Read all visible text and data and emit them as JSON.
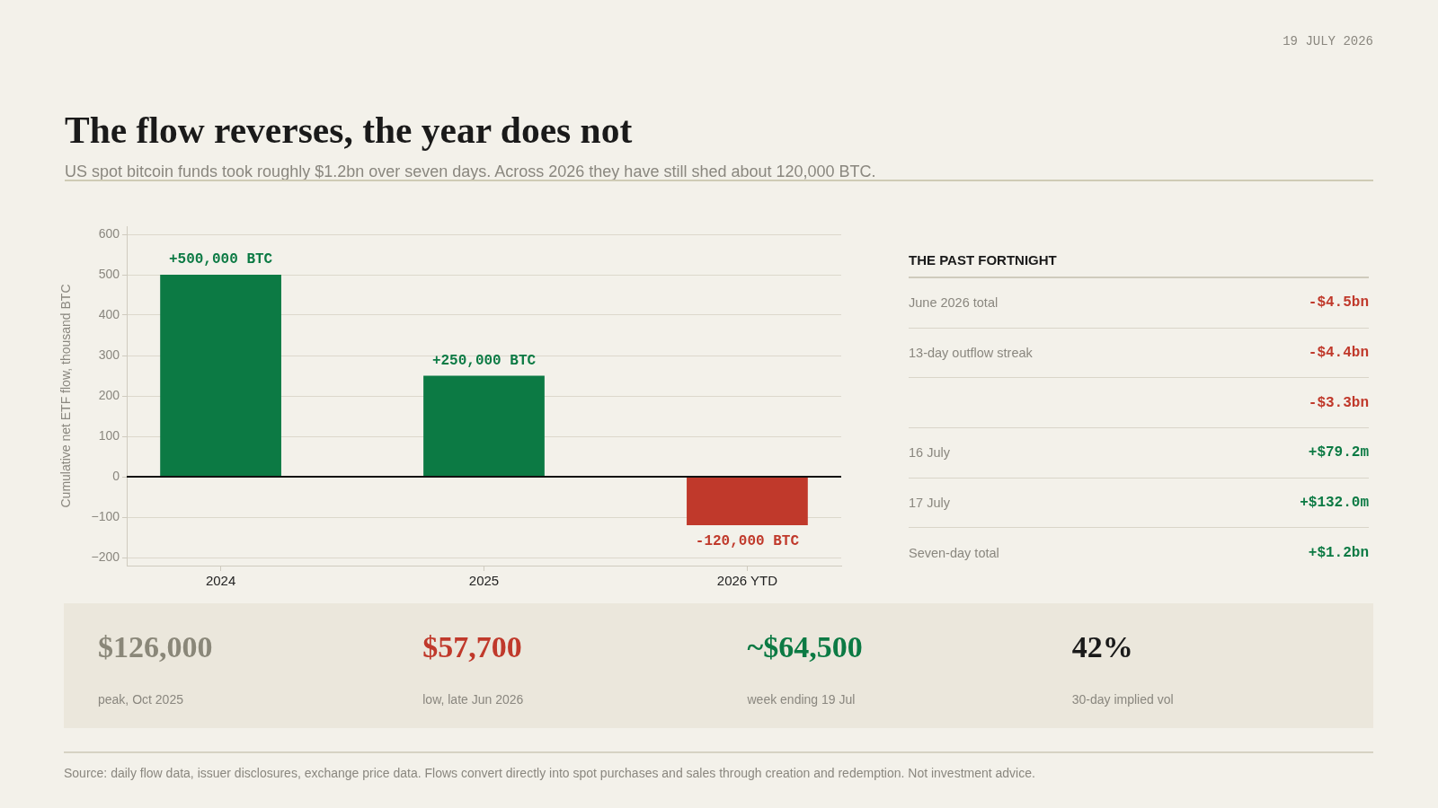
{
  "chart_data": [
    {
      "type": "bar",
      "title": "The flow reverses, the year does not",
      "subtitle": "US spot bitcoin funds took roughly $1.2bn over seven days. Across 2026 they have still shed about 120,000 BTC.",
      "ylabel": "Cumulative net ETF flow, thousand BTC",
      "categories": [
        "2024",
        "2025",
        "2026 YTD"
      ],
      "values": [
        500,
        250,
        -120
      ],
      "colors": [
        "#0c7a44",
        "#0c7a44",
        "#c0392b"
      ],
      "ylim": [
        -220,
        620
      ],
      "yticks": [
        {
          "value": -200,
          "label": "−200"
        },
        {
          "value": -100,
          "label": "−100"
        },
        0,
        100,
        200,
        300,
        400,
        500,
        600
      ],
      "grid": "y",
      "ref_lines": [
        {
          "axis": "y",
          "value": 0,
          "color": "#111111"
        }
      ],
      "annotations": [
        "19 JULY 2026",
        {
          "text": "+500,000 BTC",
          "x": "2024",
          "y": 500
        },
        {
          "text": "+250,000 BTC",
          "x": "2025",
          "y": 250
        },
        {
          "text": "-120,000 BTC",
          "x": "2026 YTD",
          "y": -120
        },
        "Source: daily flow data, issuer disclosures, exchange price data. Flows convert directly into spot purchases and sales through creation and redemption. Not investment advice."
      ]
    },
    {
      "type": "other",
      "title": "THE PAST FORTNIGHT",
      "categories": [
        "June 2026 total",
        "13-day outflow streak",
        null,
        "16 July",
        "17 July",
        "Seven-day total"
      ],
      "value_labels": [
        "-$4.5bn",
        "-$4.4bn",
        "-$3.3bn",
        "+$79.2m",
        "+$132.0m",
        "+$1.2bn"
      ],
      "colors": [
        "#c0392b",
        "#c0392b",
        "#c0392b",
        "#0c7a44",
        "#0c7a44",
        "#0c7a44"
      ]
    },
    {
      "type": "other",
      "categories": [
        "peak, Oct 2025",
        "low, late Jun 2026",
        "week ending 19 Jul",
        "30-day implied vol"
      ],
      "value_labels": [
        "$126,000",
        "$57,700",
        "~$64,500",
        "42%"
      ]
    }
  ]
}
